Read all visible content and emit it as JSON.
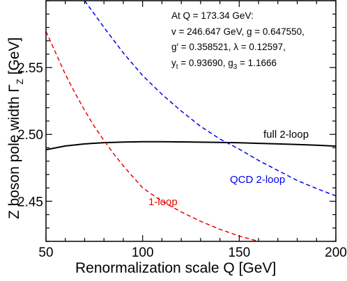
{
  "chart_data": {
    "type": "line",
    "xlabel": "Renormalization scale Q  [GeV]",
    "ylabel": "Z boson pole width  Γ",
    "ylabel_subscript": "Z",
    "ylabel_unit": "[GeV]",
    "xlim": [
      50,
      200
    ],
    "ylim": [
      2.42,
      2.6
    ],
    "x_ticks": [
      50,
      100,
      150,
      200
    ],
    "y_ticks": [
      2.45,
      2.5,
      2.55
    ],
    "y_tick_labels": [
      "2.45",
      "2.50",
      "2.55"
    ],
    "grid": false,
    "annotation": {
      "line1": "At Q = 173.34 GeV:",
      "line2": "v = 246.647 GeV,    g = 0.647550,",
      "line3": "g′ = 0.358521,     λ = 0.12597,",
      "line4_a": "y",
      "line4_sub": "t",
      "line4_b": " = 0.93690,      g",
      "line4_sub2": "3",
      "line4_c": " = 1.1666"
    },
    "series": [
      {
        "name": "full 2-loop",
        "color": "#000000",
        "dash": "solid",
        "x": [
          50,
          60,
          70,
          80,
          90,
          100,
          110,
          120,
          130,
          140,
          150,
          160,
          170,
          180,
          190,
          200
        ],
        "y": [
          2.4885,
          2.4913,
          2.4929,
          2.4938,
          2.4943,
          2.4945,
          2.4945,
          2.4944,
          2.4942,
          2.494,
          2.4937,
          2.4933,
          2.4929,
          2.4924,
          2.4919,
          2.4912
        ]
      },
      {
        "name": "QCD 2-loop",
        "color": "#0000ee",
        "dash": "dashed",
        "x": [
          70,
          80,
          90,
          100,
          110,
          120,
          130,
          140,
          150,
          160,
          170,
          180,
          190,
          200
        ],
        "y": [
          2.6,
          2.58,
          2.561,
          2.544,
          2.53,
          2.5175,
          2.506,
          2.4965,
          2.489,
          2.4805,
          2.473,
          2.4655,
          2.4595,
          2.454
        ]
      },
      {
        "name": "1-loop",
        "color": "#ee0000",
        "dash": "dashed",
        "x": [
          50,
          55,
          60,
          65,
          70,
          75,
          80,
          85,
          90,
          100,
          110,
          120,
          130,
          140,
          150,
          160,
          166
        ],
        "y": [
          2.577,
          2.561,
          2.545,
          2.531,
          2.518,
          2.506,
          2.4955,
          2.4855,
          2.4765,
          2.46,
          2.45,
          2.442,
          2.435,
          2.429,
          2.424,
          2.42,
          2.418
        ]
      }
    ]
  }
}
